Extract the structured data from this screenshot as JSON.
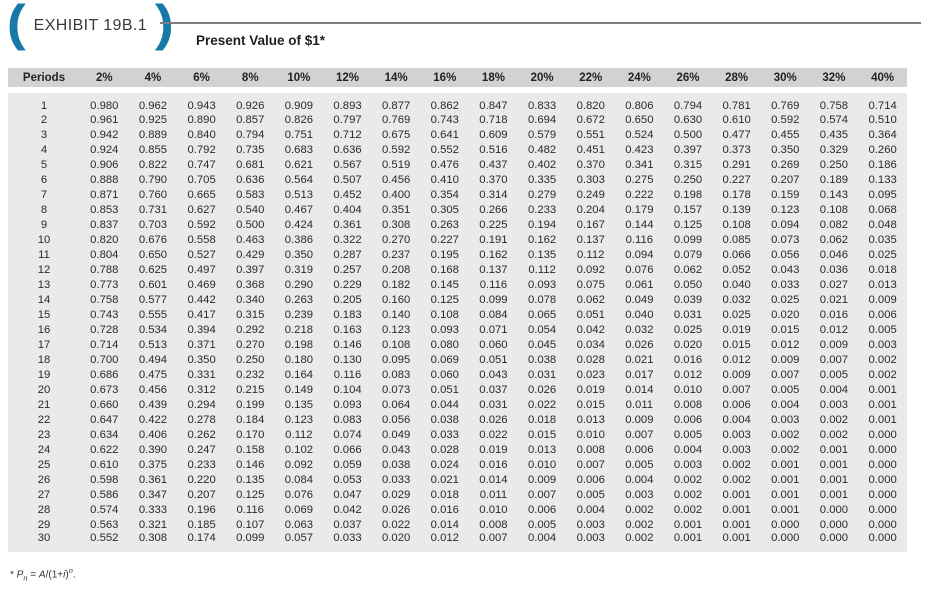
{
  "exhibit": {
    "paren_left": "(",
    "paren_right": ")",
    "label": "EXHIBIT 19B.1",
    "title": "Present Value of $1*"
  },
  "colors": {
    "accent_blue": "#1779a8",
    "header_strip_bg": "#d2d2d2",
    "table_body_bg": "#eaeaea",
    "rule_gray": "#7d7d7d",
    "text": "#2a2a2a"
  },
  "footnote": {
    "star": "* ",
    "p": "P",
    "p_sub": "n",
    "eq": " = ",
    "a": "A",
    "mid": "/(1+",
    "i": "i",
    "close": ")",
    "sup": "n",
    "dot": "."
  },
  "table": {
    "columns": [
      "Periods",
      "2%",
      "4%",
      "6%",
      "8%",
      "10%",
      "12%",
      "14%",
      "16%",
      "18%",
      "20%",
      "22%",
      "24%",
      "26%",
      "28%",
      "30%",
      "32%",
      "40%"
    ],
    "rows": [
      [
        "1",
        "0.980",
        "0.962",
        "0.943",
        "0.926",
        "0.909",
        "0.893",
        "0.877",
        "0.862",
        "0.847",
        "0.833",
        "0.820",
        "0.806",
        "0.794",
        "0.781",
        "0.769",
        "0.758",
        "0.714"
      ],
      [
        "2",
        "0.961",
        "0.925",
        "0.890",
        "0.857",
        "0.826",
        "0.797",
        "0.769",
        "0.743",
        "0.718",
        "0.694",
        "0.672",
        "0.650",
        "0.630",
        "0.610",
        "0.592",
        "0.574",
        "0.510"
      ],
      [
        "3",
        "0.942",
        "0.889",
        "0.840",
        "0.794",
        "0.751",
        "0.712",
        "0.675",
        "0.641",
        "0.609",
        "0.579",
        "0.551",
        "0.524",
        "0.500",
        "0.477",
        "0.455",
        "0.435",
        "0.364"
      ],
      [
        "4",
        "0.924",
        "0.855",
        "0.792",
        "0.735",
        "0.683",
        "0.636",
        "0.592",
        "0.552",
        "0.516",
        "0.482",
        "0.451",
        "0.423",
        "0.397",
        "0.373",
        "0.350",
        "0.329",
        "0.260"
      ],
      [
        "5",
        "0.906",
        "0.822",
        "0.747",
        "0.681",
        "0.621",
        "0.567",
        "0.519",
        "0.476",
        "0.437",
        "0.402",
        "0.370",
        "0.341",
        "0.315",
        "0.291",
        "0.269",
        "0.250",
        "0.186"
      ],
      [
        "6",
        "0.888",
        "0.790",
        "0.705",
        "0.636",
        "0.564",
        "0.507",
        "0.456",
        "0.410",
        "0.370",
        "0.335",
        "0.303",
        "0.275",
        "0.250",
        "0.227",
        "0.207",
        "0.189",
        "0.133"
      ],
      [
        "7",
        "0.871",
        "0.760",
        "0.665",
        "0.583",
        "0.513",
        "0.452",
        "0.400",
        "0.354",
        "0.314",
        "0.279",
        "0.249",
        "0.222",
        "0.198",
        "0.178",
        "0.159",
        "0.143",
        "0.095"
      ],
      [
        "8",
        "0.853",
        "0.731",
        "0.627",
        "0.540",
        "0.467",
        "0.404",
        "0.351",
        "0.305",
        "0.266",
        "0.233",
        "0.204",
        "0.179",
        "0.157",
        "0.139",
        "0.123",
        "0.108",
        "0.068"
      ],
      [
        "9",
        "0.837",
        "0.703",
        "0.592",
        "0.500",
        "0.424",
        "0.361",
        "0.308",
        "0.263",
        "0.225",
        "0.194",
        "0.167",
        "0.144",
        "0.125",
        "0.108",
        "0.094",
        "0.082",
        "0.048"
      ],
      [
        "10",
        "0.820",
        "0.676",
        "0.558",
        "0.463",
        "0.386",
        "0.322",
        "0.270",
        "0.227",
        "0.191",
        "0.162",
        "0.137",
        "0.116",
        "0.099",
        "0.085",
        "0.073",
        "0.062",
        "0.035"
      ],
      [
        "11",
        "0.804",
        "0.650",
        "0.527",
        "0.429",
        "0.350",
        "0.287",
        "0.237",
        "0.195",
        "0.162",
        "0.135",
        "0.112",
        "0.094",
        "0.079",
        "0.066",
        "0.056",
        "0.046",
        "0.025"
      ],
      [
        "12",
        "0.788",
        "0.625",
        "0.497",
        "0.397",
        "0.319",
        "0.257",
        "0.208",
        "0.168",
        "0.137",
        "0.112",
        "0.092",
        "0.076",
        "0.062",
        "0.052",
        "0.043",
        "0.036",
        "0.018"
      ],
      [
        "13",
        "0.773",
        "0.601",
        "0.469",
        "0.368",
        "0.290",
        "0.229",
        "0.182",
        "0.145",
        "0.116",
        "0.093",
        "0.075",
        "0.061",
        "0.050",
        "0.040",
        "0.033",
        "0.027",
        "0.013"
      ],
      [
        "14",
        "0.758",
        "0.577",
        "0.442",
        "0.340",
        "0.263",
        "0.205",
        "0.160",
        "0.125",
        "0.099",
        "0.078",
        "0.062",
        "0.049",
        "0.039",
        "0.032",
        "0.025",
        "0.021",
        "0.009"
      ],
      [
        "15",
        "0.743",
        "0.555",
        "0.417",
        "0.315",
        "0.239",
        "0.183",
        "0.140",
        "0.108",
        "0.084",
        "0.065",
        "0.051",
        "0.040",
        "0.031",
        "0.025",
        "0.020",
        "0.016",
        "0.006"
      ],
      [
        "16",
        "0.728",
        "0.534",
        "0.394",
        "0.292",
        "0.218",
        "0.163",
        "0.123",
        "0.093",
        "0.071",
        "0.054",
        "0.042",
        "0.032",
        "0.025",
        "0.019",
        "0.015",
        "0.012",
        "0.005"
      ],
      [
        "17",
        "0.714",
        "0.513",
        "0.371",
        "0.270",
        "0.198",
        "0.146",
        "0.108",
        "0.080",
        "0.060",
        "0.045",
        "0.034",
        "0.026",
        "0.020",
        "0.015",
        "0.012",
        "0.009",
        "0.003"
      ],
      [
        "18",
        "0.700",
        "0.494",
        "0.350",
        "0.250",
        "0.180",
        "0.130",
        "0.095",
        "0.069",
        "0.051",
        "0.038",
        "0.028",
        "0.021",
        "0.016",
        "0.012",
        "0.009",
        "0.007",
        "0.002"
      ],
      [
        "19",
        "0.686",
        "0.475",
        "0.331",
        "0.232",
        "0.164",
        "0.116",
        "0.083",
        "0.060",
        "0.043",
        "0.031",
        "0.023",
        "0.017",
        "0.012",
        "0.009",
        "0.007",
        "0.005",
        "0.002"
      ],
      [
        "20",
        "0.673",
        "0.456",
        "0.312",
        "0.215",
        "0.149",
        "0.104",
        "0.073",
        "0.051",
        "0.037",
        "0.026",
        "0.019",
        "0.014",
        "0.010",
        "0.007",
        "0.005",
        "0.004",
        "0.001"
      ],
      [
        "21",
        "0.660",
        "0.439",
        "0.294",
        "0.199",
        "0.135",
        "0.093",
        "0.064",
        "0.044",
        "0.031",
        "0.022",
        "0.015",
        "0.011",
        "0.008",
        "0.006",
        "0.004",
        "0.003",
        "0.001"
      ],
      [
        "22",
        "0.647",
        "0.422",
        "0.278",
        "0.184",
        "0.123",
        "0.083",
        "0.056",
        "0.038",
        "0.026",
        "0.018",
        "0.013",
        "0.009",
        "0.006",
        "0.004",
        "0.003",
        "0.002",
        "0.001"
      ],
      [
        "23",
        "0.634",
        "0.406",
        "0.262",
        "0.170",
        "0.112",
        "0.074",
        "0.049",
        "0.033",
        "0.022",
        "0.015",
        "0.010",
        "0.007",
        "0.005",
        "0.003",
        "0.002",
        "0.002",
        "0.000"
      ],
      [
        "24",
        "0.622",
        "0.390",
        "0.247",
        "0.158",
        "0.102",
        "0.066",
        "0.043",
        "0.028",
        "0.019",
        "0.013",
        "0.008",
        "0.006",
        "0.004",
        "0.003",
        "0.002",
        "0.001",
        "0.000"
      ],
      [
        "25",
        "0.610",
        "0.375",
        "0.233",
        "0.146",
        "0.092",
        "0.059",
        "0.038",
        "0.024",
        "0.016",
        "0.010",
        "0.007",
        "0.005",
        "0.003",
        "0.002",
        "0.001",
        "0.001",
        "0.000"
      ],
      [
        "26",
        "0.598",
        "0.361",
        "0.220",
        "0.135",
        "0.084",
        "0.053",
        "0.033",
        "0.021",
        "0.014",
        "0.009",
        "0.006",
        "0.004",
        "0.002",
        "0.002",
        "0.001",
        "0.001",
        "0.000"
      ],
      [
        "27",
        "0.586",
        "0.347",
        "0.207",
        "0.125",
        "0.076",
        "0.047",
        "0.029",
        "0.018",
        "0.011",
        "0.007",
        "0.005",
        "0.003",
        "0.002",
        "0.001",
        "0.001",
        "0.001",
        "0.000"
      ],
      [
        "28",
        "0.574",
        "0.333",
        "0.196",
        "0.116",
        "0.069",
        "0.042",
        "0.026",
        "0.016",
        "0.010",
        "0.006",
        "0.004",
        "0.002",
        "0.002",
        "0.001",
        "0.001",
        "0.000",
        "0.000"
      ],
      [
        "29",
        "0.563",
        "0.321",
        "0.185",
        "0.107",
        "0.063",
        "0.037",
        "0.022",
        "0.014",
        "0.008",
        "0.005",
        "0.003",
        "0.002",
        "0.001",
        "0.001",
        "0.000",
        "0.000",
        "0.000"
      ],
      [
        "30",
        "0.552",
        "0.308",
        "0.174",
        "0.099",
        "0.057",
        "0.033",
        "0.020",
        "0.012",
        "0.007",
        "0.004",
        "0.003",
        "0.002",
        "0.001",
        "0.001",
        "0.000",
        "0.000",
        "0.000"
      ]
    ]
  }
}
